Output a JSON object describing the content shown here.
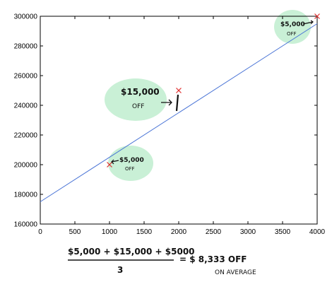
{
  "chart_data": {
    "type": "scatter",
    "title": "",
    "xlabel": "",
    "ylabel": "",
    "xlim": [
      0,
      4000
    ],
    "ylim": [
      160000,
      300000
    ],
    "xticks": [
      0,
      500,
      1000,
      1500,
      2000,
      2500,
      3000,
      3500,
      4000
    ],
    "yticks": [
      160000,
      180000,
      200000,
      220000,
      240000,
      260000,
      280000,
      300000
    ],
    "grid": false,
    "points": [
      {
        "x": 1000,
        "y": 200000
      },
      {
        "x": 2000,
        "y": 250000
      },
      {
        "x": 4000,
        "y": 300000
      }
    ],
    "fit_line": {
      "x": [
        0,
        4000
      ],
      "y": [
        175000,
        295000
      ],
      "color": "#4a74d6"
    },
    "point_color": "#e03030",
    "highlight_color": "#c9f0d6",
    "annotations": [
      {
        "text_top": "$5,000",
        "text_bottom": "OFF",
        "x": 1000,
        "y": 200000
      },
      {
        "text_top": "$15,000",
        "text_bottom": "OFF",
        "x": 2000,
        "y": 250000
      },
      {
        "text_top": "$5,000",
        "text_bottom": "OFF",
        "x": 4000,
        "y": 300000
      }
    ]
  },
  "formula": {
    "numerator": "$5,000 + $15,000 + $5000",
    "denominator": "3",
    "result": "= $ 8,333 OFF",
    "note": "ON AVERAGE"
  }
}
